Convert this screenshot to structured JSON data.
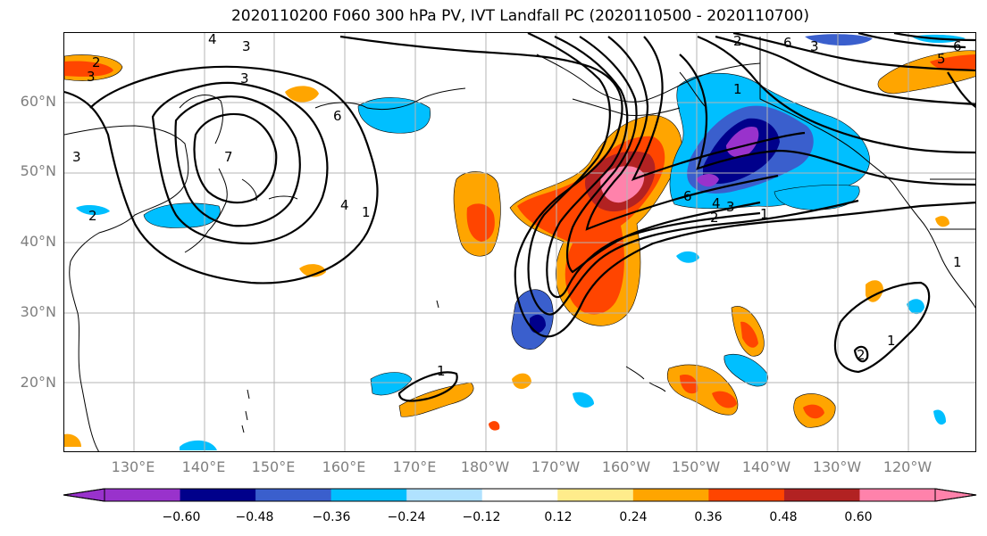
{
  "title": "2020110200 F060 300 hPa PV, IVT Landfall PC (2020110500 - 2020110700)",
  "lat_labels": [
    "60°N",
    "50°N",
    "40°N",
    "30°N",
    "20°N"
  ],
  "lon_labels": [
    "130°E",
    "140°E",
    "150°E",
    "160°E",
    "170°E",
    "180°W",
    "170°W",
    "160°W",
    "150°W",
    "140°W",
    "130°W",
    "120°W"
  ],
  "colorbar": {
    "colors": [
      "#9932cc",
      "#00008b",
      "#3a5fcd",
      "#00bfff",
      "#b0e2ff",
      "#ffffff",
      "#ffec8b",
      "#ffa500",
      "#ff4500",
      "#b22222",
      "#ff82ab"
    ],
    "tick_labels": [
      "−0.60",
      "−0.48",
      "−0.36",
      "−0.24",
      "−0.12",
      "0.12",
      "0.24",
      "0.36",
      "0.48",
      "0.60"
    ]
  },
  "contour_labels": [
    "4",
    "3",
    "3",
    "2",
    "3",
    "6",
    "7",
    "4",
    "1",
    "2",
    "3",
    "2",
    "6",
    "3",
    "5",
    "6",
    "1",
    "6",
    "4",
    "2",
    "3",
    "1",
    "1",
    "1",
    "2",
    "1"
  ]
}
